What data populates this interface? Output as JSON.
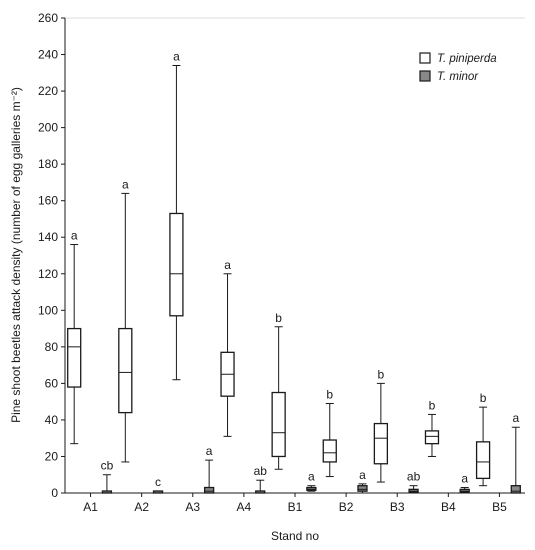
{
  "chart_data": {
    "type": "box",
    "title": "",
    "xlabel": "Stand no",
    "ylabel": "Pine shoot beetles attack density (number of egg galleries m⁻²)",
    "ylim": [
      0,
      260
    ],
    "yticks": [
      0,
      20,
      40,
      60,
      80,
      100,
      120,
      140,
      160,
      180,
      200,
      220,
      240,
      260
    ],
    "grid": false,
    "legend_position": "top-right",
    "categories": [
      "A1",
      "A2",
      "A3",
      "A4",
      "B1",
      "B2",
      "B3",
      "B4",
      "B5"
    ],
    "series": [
      {
        "name": "T. piniperda",
        "color": "#ffffff",
        "boxes": [
          {
            "min": 27,
            "q1": 58,
            "median": 80,
            "q3": 90,
            "max": 136,
            "label": "a"
          },
          {
            "min": 17,
            "q1": 44,
            "median": 66,
            "q3": 90,
            "max": 164,
            "label": "a"
          },
          {
            "min": 62,
            "q1": 97,
            "median": 120,
            "q3": 153,
            "max": 234,
            "label": "a"
          },
          {
            "min": 31,
            "q1": 53,
            "median": 65,
            "q3": 77,
            "max": 120,
            "label": "a"
          },
          {
            "min": 13,
            "q1": 20,
            "median": 33,
            "q3": 55,
            "max": 91,
            "label": "b"
          },
          {
            "min": 9,
            "q1": 17,
            "median": 22,
            "q3": 29,
            "max": 49,
            "label": "b"
          },
          {
            "min": 6,
            "q1": 16,
            "median": 30,
            "q3": 38,
            "max": 60,
            "label": "b"
          },
          {
            "min": 20,
            "q1": 27,
            "median": 31,
            "q3": 34,
            "max": 43,
            "label": "b"
          },
          {
            "min": 4,
            "q1": 8,
            "median": 17,
            "q3": 28,
            "max": 47,
            "label": "b"
          }
        ]
      },
      {
        "name": "T. minor",
        "color": "#888888",
        "boxes": [
          {
            "min": 0,
            "q1": 0,
            "median": 0,
            "q3": 0,
            "max": 10,
            "label": "cb"
          },
          {
            "min": 0,
            "q1": 0,
            "median": 0,
            "q3": 0,
            "max": 1,
            "label": "c"
          },
          {
            "min": 0,
            "q1": 0,
            "median": 1,
            "q3": 3,
            "max": 18,
            "label": "a"
          },
          {
            "min": 0,
            "q1": 0,
            "median": 0,
            "q3": 1,
            "max": 7,
            "label": "ab"
          },
          {
            "min": 1,
            "q1": 1.5,
            "median": 2,
            "q3": 3,
            "max": 4,
            "label": "a"
          },
          {
            "min": 0,
            "q1": 1,
            "median": 2,
            "q3": 4,
            "max": 5,
            "label": "a"
          },
          {
            "min": 0,
            "q1": 0.5,
            "median": 1,
            "q3": 2,
            "max": 4,
            "label": "ab"
          },
          {
            "min": 0,
            "q1": 0.5,
            "median": 1,
            "q3": 2,
            "max": 3,
            "label": "a"
          },
          {
            "min": 0,
            "q1": 0,
            "median": 1,
            "q3": 4,
            "max": 36,
            "label": "a"
          }
        ]
      }
    ]
  }
}
